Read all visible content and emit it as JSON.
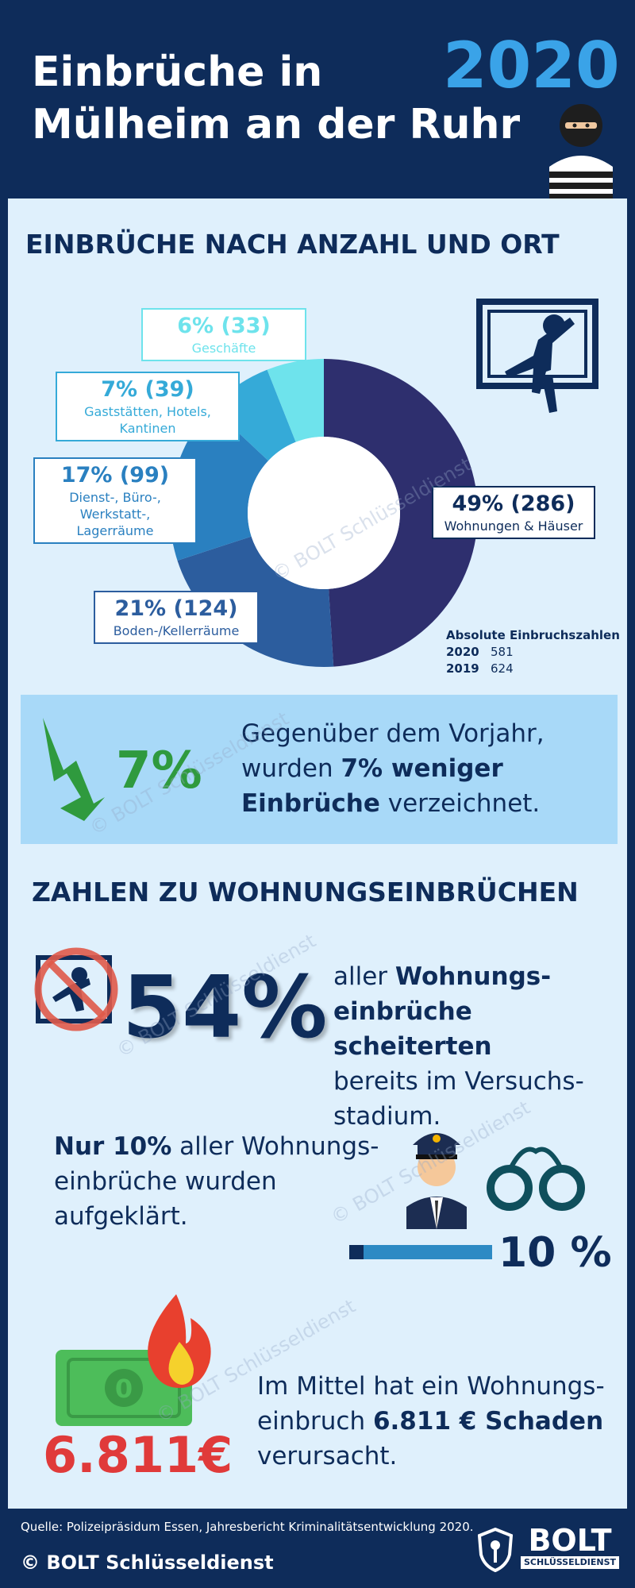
{
  "header": {
    "title_line1": "Einbrüche in",
    "title_line2": "Mülheim an der Ruhr",
    "year": "2020"
  },
  "section1": {
    "title": "EINBRÜCHE NACH ANZAHL UND ORT"
  },
  "chart_data": {
    "type": "pie",
    "title": "EINBRÜCHE NACH ANZAHL UND ORT",
    "slices": [
      {
        "label": "Wohnungen & Häuser",
        "percent": 49,
        "count": 286,
        "pct_text": "49% (286)",
        "color": "#2e2f6e"
      },
      {
        "label": "Boden-/Kellerräume",
        "percent": 21,
        "count": 124,
        "pct_text": "21% (124)",
        "color": "#2c5d9e"
      },
      {
        "label": "Dienst-, Büro-, Werkstatt-, Lagerräume",
        "label_line1": "Dienst-, Büro-, Werkstatt-,",
        "label_line2": "Lagerräume",
        "percent": 17,
        "count": 99,
        "pct_text": "17% (99)",
        "color": "#2a80c0"
      },
      {
        "label": "Gaststätten, Hotels, Kantinen",
        "percent": 7,
        "count": 39,
        "pct_text": "7% (39)",
        "color": "#35aad8"
      },
      {
        "label": "Geschäfte",
        "percent": 6,
        "count": 33,
        "pct_text": "6% (33)",
        "color": "#6ee3ec"
      }
    ]
  },
  "absolute": {
    "title": "Absolute Einbruchszahlen",
    "rows": [
      {
        "year": "2020",
        "value": "581"
      },
      {
        "year": "2019",
        "value": "624"
      }
    ]
  },
  "banner": {
    "pct": "7%",
    "line1": "Gegenüber dem Vorjahr,",
    "line2_pre": "wurden ",
    "line2_bold": "7% weniger",
    "line3_bold": "Einbrüche",
    "line3_post": " verzeichnet."
  },
  "section2": {
    "title": "ZAHLEN ZU WOHNUNGSEINBRÜCHEN"
  },
  "attempts": {
    "pct": "54%",
    "pct_value": 54,
    "line1_pre": "aller ",
    "line1_bold": "Wohnungs-",
    "line2_bold": "einbrüche scheiterten",
    "line3": "bereits im Versuchs-",
    "line4": "stadium."
  },
  "solved": {
    "line1_bold": "Nur 10%",
    "line1_post": " aller Wohnungs-",
    "line2": "einbrüche wurden",
    "line3": "aufgeklärt.",
    "pct": "10 %",
    "progress": 0.1
  },
  "damage": {
    "amount": "6.811€",
    "line1": "Im Mittel hat ein Wohnungs-",
    "line2_pre": "einbruch ",
    "line2_bold": "6.811 € Schaden",
    "line3": "verursacht."
  },
  "watermark": "© BOLT Schlüsseldienst",
  "footer": {
    "source": "Quelle: Polizeipräsidum Essen, Jahresbericht Kriminalitätsentwicklung 2020.",
    "copyright": "© BOLT Schlüsseldienst",
    "logo_text": "BOLT",
    "logo_sub": "SCHLÜSSELDIENST"
  },
  "colors": {
    "navy": "#0e2c5a",
    "panel": "#dff0fc",
    "accent": "#3aa3e8",
    "green": "#2f9a3e",
    "red": "#e03a3a"
  }
}
